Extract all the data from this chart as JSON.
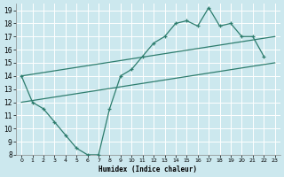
{
  "bg_color": "#cce8ee",
  "grid_color": "#ffffff",
  "line_color": "#2e7d6e",
  "xlabel": "Humidex (Indice chaleur)",
  "xlim": [
    -0.5,
    23.5
  ],
  "ylim": [
    8,
    19.5
  ],
  "xticks": [
    0,
    1,
    2,
    3,
    4,
    5,
    6,
    7,
    8,
    9,
    10,
    11,
    12,
    13,
    14,
    15,
    16,
    17,
    18,
    19,
    20,
    21,
    22,
    23
  ],
  "yticks": [
    8,
    9,
    10,
    11,
    12,
    13,
    14,
    15,
    16,
    17,
    18,
    19
  ],
  "line1_x": [
    0,
    1,
    2,
    3,
    4,
    5,
    6,
    7,
    8,
    9,
    10,
    11,
    12,
    13,
    14,
    15,
    16,
    17,
    18,
    19,
    20,
    21,
    22
  ],
  "line1_y": [
    14,
    12,
    11.5,
    10.5,
    9.5,
    8.5,
    8,
    8,
    11.5,
    14,
    14.5,
    15.5,
    16.5,
    17,
    18,
    18.2,
    17.8,
    19.2,
    17.8,
    18,
    17,
    17,
    15.5
  ],
  "line2_x": [
    0,
    23
  ],
  "line2_y": [
    12.0,
    15.0
  ],
  "line3_x": [
    0,
    23
  ],
  "line3_y": [
    14.0,
    17.0
  ]
}
